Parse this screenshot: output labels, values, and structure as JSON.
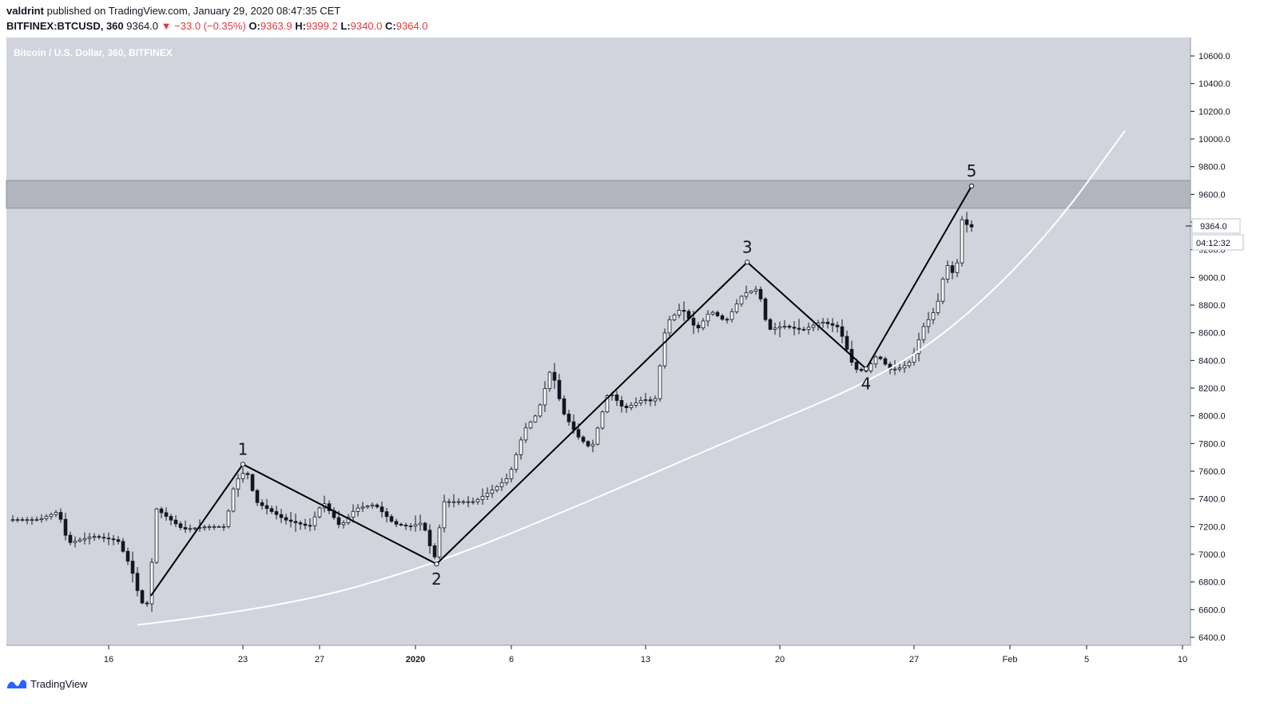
{
  "header": {
    "publisher": "valdrint",
    "published_text": "published on TradingView.com, January 29, 2020 08:47:35 CET",
    "symbol": "BITFINEX:BTCUSD, 360",
    "last": "9364.0",
    "change": "−33.0 (−0.35%)",
    "o_label": "O:",
    "o": "9363.9",
    "h_label": "H:",
    "h": "9399.2",
    "l_label": "L:",
    "l": "9340.0",
    "c_label": "C:",
    "c": "9364.0"
  },
  "chart_data": {
    "type": "candlestick",
    "title": "Bitcoin / U.S. Dollar, 360, BITFINEX",
    "y_ticks": [
      "10600.0",
      "10400.0",
      "10200.0",
      "10000.0",
      "9800.0",
      "9600.0",
      "9400.0",
      "9200.0",
      "9000.0",
      "8800.0",
      "8600.0",
      "8400.0",
      "8200.0",
      "8000.0",
      "7800.0",
      "7600.0",
      "7400.0",
      "7200.0",
      "7000.0",
      "6800.0",
      "6600.0",
      "6400.0"
    ],
    "ylim": [
      6340,
      10680
    ],
    "x_ticks": [
      {
        "label": "16",
        "t": 16
      },
      {
        "label": "23",
        "t": 23
      },
      {
        "label": "27",
        "t": 27
      },
      {
        "label": "2020",
        "t": 32
      },
      {
        "label": "6",
        "t": 37
      },
      {
        "label": "13",
        "t": 44
      },
      {
        "label": "20",
        "t": 51
      },
      {
        "label": "27",
        "t": 58
      },
      {
        "label": "Feb",
        "t": 63
      },
      {
        "label": "5",
        "t": 67
      },
      {
        "label": "10",
        "t": 72
      }
    ],
    "price_label": "9364.0",
    "countdown": "04:12:32",
    "resistance_zone": [
      9500,
      9700
    ],
    "waves": [
      {
        "label": "",
        "t": 18.2,
        "price": 6700
      },
      {
        "label": "1",
        "t": 23.0,
        "price": 7650
      },
      {
        "label": "2",
        "t": 33.1,
        "price": 6930
      },
      {
        "label": "3",
        "t": 49.3,
        "price": 9110
      },
      {
        "label": "4",
        "t": 55.5,
        "price": 8340
      },
      {
        "label": "5",
        "t": 61.0,
        "price": 9660
      }
    ],
    "support_curve": [
      {
        "t": 17.5,
        "price": 6490
      },
      {
        "t": 25,
        "price": 6610
      },
      {
        "t": 33.1,
        "price": 6930
      },
      {
        "t": 41,
        "price": 7380
      },
      {
        "t": 49,
        "price": 7860
      },
      {
        "t": 55.5,
        "price": 8230
      },
      {
        "t": 60,
        "price": 8620
      },
      {
        "t": 65,
        "price": 9300
      },
      {
        "t": 69,
        "price": 10060
      }
    ],
    "path_keypoints": [
      {
        "t": 11.0,
        "price": 7250
      },
      {
        "t": 12.5,
        "price": 7250
      },
      {
        "t": 13.5,
        "price": 7310
      },
      {
        "t": 14.0,
        "price": 7080
      },
      {
        "t": 15.3,
        "price": 7130
      },
      {
        "t": 16.6,
        "price": 7100
      },
      {
        "t": 17.3,
        "price": 6900
      },
      {
        "t": 17.8,
        "price": 6650
      },
      {
        "t": 18.2,
        "price": 6640
      },
      {
        "t": 18.6,
        "price": 7330
      },
      {
        "t": 20.0,
        "price": 7180
      },
      {
        "t": 21.3,
        "price": 7200
      },
      {
        "t": 22.2,
        "price": 7200
      },
      {
        "t": 22.7,
        "price": 7520
      },
      {
        "t": 23.3,
        "price": 7610
      },
      {
        "t": 23.8,
        "price": 7380
      },
      {
        "t": 25.3,
        "price": 7250
      },
      {
        "t": 26.6,
        "price": 7200
      },
      {
        "t": 27.3,
        "price": 7380
      },
      {
        "t": 28.2,
        "price": 7200
      },
      {
        "t": 29.0,
        "price": 7330
      },
      {
        "t": 30.0,
        "price": 7360
      },
      {
        "t": 31.0,
        "price": 7220
      },
      {
        "t": 31.8,
        "price": 7200
      },
      {
        "t": 32.5,
        "price": 7230
      },
      {
        "t": 33.1,
        "price": 6960
      },
      {
        "t": 33.6,
        "price": 7380
      },
      {
        "t": 35.2,
        "price": 7380
      },
      {
        "t": 36.3,
        "price": 7480
      },
      {
        "t": 37.0,
        "price": 7560
      },
      {
        "t": 37.8,
        "price": 7900
      },
      {
        "t": 38.5,
        "price": 8020
      },
      {
        "t": 39.2,
        "price": 8350
      },
      {
        "t": 39.8,
        "price": 8030
      },
      {
        "t": 40.6,
        "price": 7850
      },
      {
        "t": 41.3,
        "price": 7760
      },
      {
        "t": 42.2,
        "price": 8180
      },
      {
        "t": 43.0,
        "price": 8050
      },
      {
        "t": 44.0,
        "price": 8120
      },
      {
        "t": 44.6,
        "price": 8100
      },
      {
        "t": 45.2,
        "price": 8670
      },
      {
        "t": 46.0,
        "price": 8780
      },
      {
        "t": 46.8,
        "price": 8620
      },
      {
        "t": 47.5,
        "price": 8760
      },
      {
        "t": 48.3,
        "price": 8680
      },
      {
        "t": 49.2,
        "price": 8880
      },
      {
        "t": 50.0,
        "price": 8920
      },
      {
        "t": 50.5,
        "price": 8620
      },
      {
        "t": 51.3,
        "price": 8650
      },
      {
        "t": 52.3,
        "price": 8620
      },
      {
        "t": 53.3,
        "price": 8680
      },
      {
        "t": 54.2,
        "price": 8640
      },
      {
        "t": 55.0,
        "price": 8340
      },
      {
        "t": 55.6,
        "price": 8320
      },
      {
        "t": 56.2,
        "price": 8440
      },
      {
        "t": 56.9,
        "price": 8330
      },
      {
        "t": 57.5,
        "price": 8350
      },
      {
        "t": 58.0,
        "price": 8400
      },
      {
        "t": 58.6,
        "price": 8640
      },
      {
        "t": 59.3,
        "price": 8780
      },
      {
        "t": 59.8,
        "price": 9100
      },
      {
        "t": 60.3,
        "price": 9000
      },
      {
        "t": 60.6,
        "price": 9420
      },
      {
        "t": 61.0,
        "price": 9364
      }
    ]
  },
  "footer": {
    "brand": "TradingView"
  }
}
